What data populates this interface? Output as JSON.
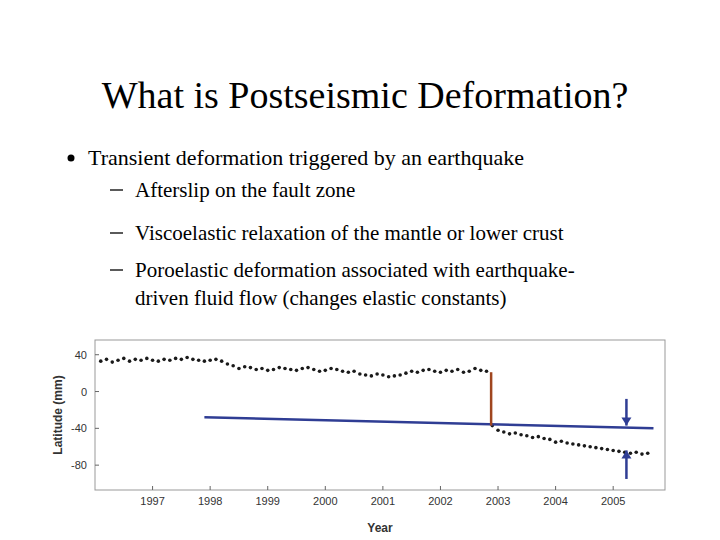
{
  "slide": {
    "title": "What is Postseismic Deformation?",
    "bullets": [
      {
        "text": "Transient deformation triggered by an earthquake",
        "sub": [
          {
            "lines": [
              "Afterslip on the fault zone"
            ]
          },
          {
            "lines": [
              "Viscoelastic relaxation of the mantle or lower crust"
            ]
          },
          {
            "lines": [
              "Poroelastic deformation associated with earthquake-",
              "driven fluid flow (changes elastic constants)"
            ]
          }
        ]
      }
    ]
  },
  "chart_data": {
    "type": "scatter",
    "xlabel": "Year",
    "ylabel": "Latitude (mm)",
    "xlim": [
      1996.0,
      2005.9
    ],
    "xticks": [
      1997,
      1998,
      1999,
      2000,
      2001,
      2002,
      2003,
      2004,
      2005
    ],
    "ylim": [
      -107,
      56
    ],
    "yticks": [
      -80,
      -40,
      0,
      40
    ],
    "grid": false,
    "series": [
      {
        "type": "scatter",
        "marker": "dot",
        "color": "#1a1a1a",
        "x": [
          1996.1,
          1996.2,
          1996.3,
          1996.4,
          1996.5,
          1996.6,
          1996.7,
          1996.8,
          1996.9,
          1997.0,
          1997.1,
          1997.2,
          1997.3,
          1997.4,
          1997.5,
          1997.6,
          1997.7,
          1997.8,
          1997.9,
          1998.0,
          1998.1,
          1998.2,
          1998.3,
          1998.4,
          1998.5,
          1998.6,
          1998.7,
          1998.8,
          1998.9,
          1999.0,
          1999.1,
          1999.2,
          1999.3,
          1999.4,
          1999.5,
          1999.6,
          1999.7,
          1999.8,
          1999.9,
          2000.0,
          2000.1,
          2000.2,
          2000.3,
          2000.4,
          2000.5,
          2000.6,
          2000.7,
          2000.8,
          2000.9,
          2001.0,
          2001.1,
          2001.2,
          2001.3,
          2001.4,
          2001.5,
          2001.6,
          2001.7,
          2001.8,
          2001.9,
          2002.0,
          2002.1,
          2002.2,
          2002.3,
          2002.4,
          2002.5,
          2002.6,
          2002.7,
          2002.8,
          2002.9,
          2003.0,
          2003.1,
          2003.2,
          2003.3,
          2003.4,
          2003.5,
          2003.6,
          2003.7,
          2003.8,
          2003.9,
          2004.0,
          2004.1,
          2004.2,
          2004.3,
          2004.4,
          2004.5,
          2004.6,
          2004.7,
          2004.8,
          2004.9,
          2005.0,
          2005.1,
          2005.2,
          2005.3,
          2005.4,
          2005.5,
          2005.6
        ],
        "values": [
          33,
          35,
          32,
          34,
          36,
          33,
          35,
          34,
          36,
          34,
          33,
          35,
          34,
          36,
          35,
          37,
          35,
          34,
          33,
          34,
          35,
          33,
          30,
          28,
          25,
          27,
          26,
          24,
          25,
          23,
          24,
          26,
          25,
          24,
          23,
          25,
          26,
          24,
          22,
          23,
          25,
          24,
          22,
          21,
          22,
          19,
          18,
          17,
          19,
          18,
          16,
          17,
          18,
          20,
          22,
          21,
          23,
          24,
          22,
          21,
          23,
          22,
          24,
          21,
          22,
          25,
          23,
          22,
          -37,
          -42,
          -44,
          -46,
          -45,
          -47,
          -48,
          -50,
          -49,
          -51,
          -52,
          -55,
          -54,
          -56,
          -57,
          -58,
          -59,
          -60,
          -61,
          -62,
          -63,
          -64,
          -65,
          -66,
          -67,
          -66,
          -68,
          -67
        ]
      },
      {
        "type": "line",
        "line_style": "solid",
        "color": "#2f3d94",
        "x": [
          1997.9,
          2005.7
        ],
        "values": [
          -28,
          -40
        ]
      },
      {
        "type": "line",
        "line_style": "solid",
        "color": "#a0461f",
        "x": [
          2002.88,
          2002.88
        ],
        "values": [
          21,
          -37
        ]
      },
      {
        "type": "line",
        "line_style": "solid",
        "marker": "arrow",
        "color": "#2f3d94",
        "x": [
          2005.23,
          2005.23
        ],
        "values": [
          -8,
          -37
        ]
      },
      {
        "type": "line",
        "line_style": "solid",
        "marker": "arrow",
        "color": "#2f3d94",
        "x": [
          2005.23,
          2005.23
        ],
        "values": [
          -95,
          -64
        ]
      }
    ]
  }
}
